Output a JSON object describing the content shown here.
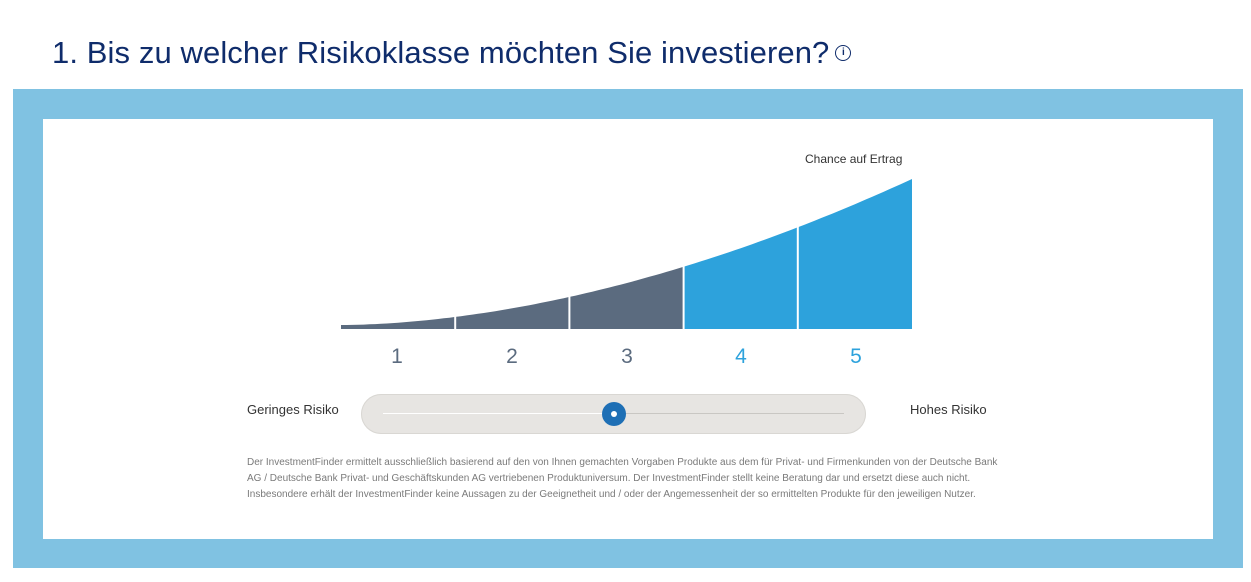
{
  "question": {
    "title": "1. Bis zu welcher Risikoklasse möchten Sie investieren?",
    "info_icon_glyph": "i",
    "icon": "info-icon"
  },
  "chart": {
    "top_label": "Chance auf Ertrag",
    "classes": [
      "1",
      "2",
      "3",
      "4",
      "5"
    ],
    "inactive_color": "#5b6b7f",
    "active_color": "#2da2dc"
  },
  "risk_slider": {
    "low_label": "Geringes Risiko",
    "high_label": "Hohes Risiko",
    "selected_class": 3,
    "min_class": 1,
    "max_class": 5
  },
  "disclaimer": "Der InvestmentFinder ermittelt ausschließlich basierend auf den von Ihnen gemachten Vorgaben Produkte aus dem für Privat- und Firmenkunden von der Deutsche Bank AG / Deutsche Bank Privat- und Geschäftskunden AG vertriebenen Produktuniversum. Der InvestmentFinder stellt keine Beratung dar und ersetzt diese auch nicht. Insbesondere erhält der InvestmentFinder keine Aussagen zu der Geeignetheit und / oder der Angemessenheit der so ermittelten Produkte für den jeweiligen Nutzer.",
  "colors": {
    "heading": "#0f2c6b",
    "frame": "#80c2e2",
    "slider_thumb": "#1e6fb5"
  }
}
